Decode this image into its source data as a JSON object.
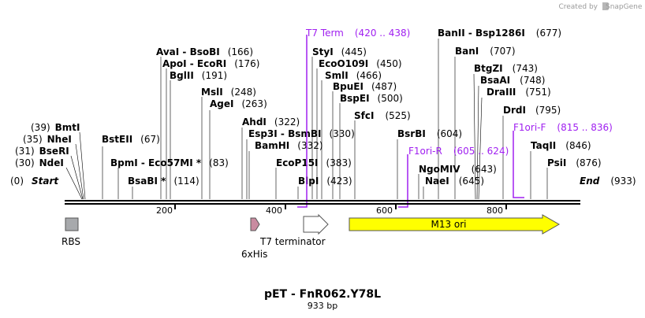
{
  "credit": {
    "prefix": "Created by",
    "brand": "SnapGene"
  },
  "plasmid": {
    "name": "pET - FnR062.Y78L",
    "length_label": "933 bp",
    "length": 933
  },
  "ruler": {
    "ticks": [
      "200",
      "400",
      "600",
      "800"
    ]
  },
  "ends": {
    "start_label": "Start",
    "start_pos": "(0)",
    "end_label": "End",
    "end_pos": "(933)"
  },
  "sites": [
    {
      "name": "NdeI",
      "pos": "(30)"
    },
    {
      "name": "BseRI",
      "pos": "(31)"
    },
    {
      "name": "NheI",
      "pos": "(35)"
    },
    {
      "name": "BmtI",
      "pos": "(39)"
    },
    {
      "name": "BstEII",
      "pos": "(67)"
    },
    {
      "name": "BpmI - Eco57MI *",
      "pos": "(83)"
    },
    {
      "name": "BsaBI *",
      "pos": "(114)"
    },
    {
      "name": "AvaI - BsoBI",
      "pos": "(166)"
    },
    {
      "name": "ApoI - EcoRI",
      "pos": "(176)"
    },
    {
      "name": "BglII",
      "pos": "(191)"
    },
    {
      "name": "MslI",
      "pos": "(248)"
    },
    {
      "name": "AgeI",
      "pos": "(263)"
    },
    {
      "name": "AhdI",
      "pos": "(322)"
    },
    {
      "name": "Esp3I - BsmBI",
      "pos": "(330)"
    },
    {
      "name": "BamHI",
      "pos": "(332)"
    },
    {
      "name": "EcoP15I",
      "pos": "(383)"
    },
    {
      "name": "BlpI",
      "pos": "(423)"
    },
    {
      "name": "StyI",
      "pos": "(445)"
    },
    {
      "name": "EcoO109I",
      "pos": "(450)"
    },
    {
      "name": "SmlI",
      "pos": "(466)"
    },
    {
      "name": "BpuEI",
      "pos": "(487)"
    },
    {
      "name": "BspEI",
      "pos": "(500)"
    },
    {
      "name": "SfcI",
      "pos": "(525)"
    },
    {
      "name": "BsrBI",
      "pos": "(604)"
    },
    {
      "name": "NgoMIV",
      "pos": "(643)"
    },
    {
      "name": "NaeI",
      "pos": "(645)"
    },
    {
      "name": "BanII - Bsp1286I",
      "pos": "(677)"
    },
    {
      "name": "BanI",
      "pos": "(707)"
    },
    {
      "name": "BtgZI",
      "pos": "(743)"
    },
    {
      "name": "BsaAI",
      "pos": "(748)"
    },
    {
      "name": "DraIII",
      "pos": "(751)"
    },
    {
      "name": "DrdI",
      "pos": "(795)"
    },
    {
      "name": "TaqII",
      "pos": "(846)"
    },
    {
      "name": "PsiI",
      "pos": "(876)"
    }
  ],
  "primers": [
    {
      "name": "T7 Term",
      "range": "(420 .. 438)"
    },
    {
      "name": "F1ori-R",
      "range": "(605 .. 624)"
    },
    {
      "name": "F1ori-F",
      "range": "(815 .. 836)"
    }
  ],
  "features": [
    {
      "name": "RBS",
      "color": "#a7a9ac"
    },
    {
      "name": "6xHis",
      "color": "#c98ba0"
    },
    {
      "name": "T7 terminator",
      "color": "#ffffff"
    },
    {
      "name": "M13 ori",
      "color": "#ffff00"
    }
  ]
}
